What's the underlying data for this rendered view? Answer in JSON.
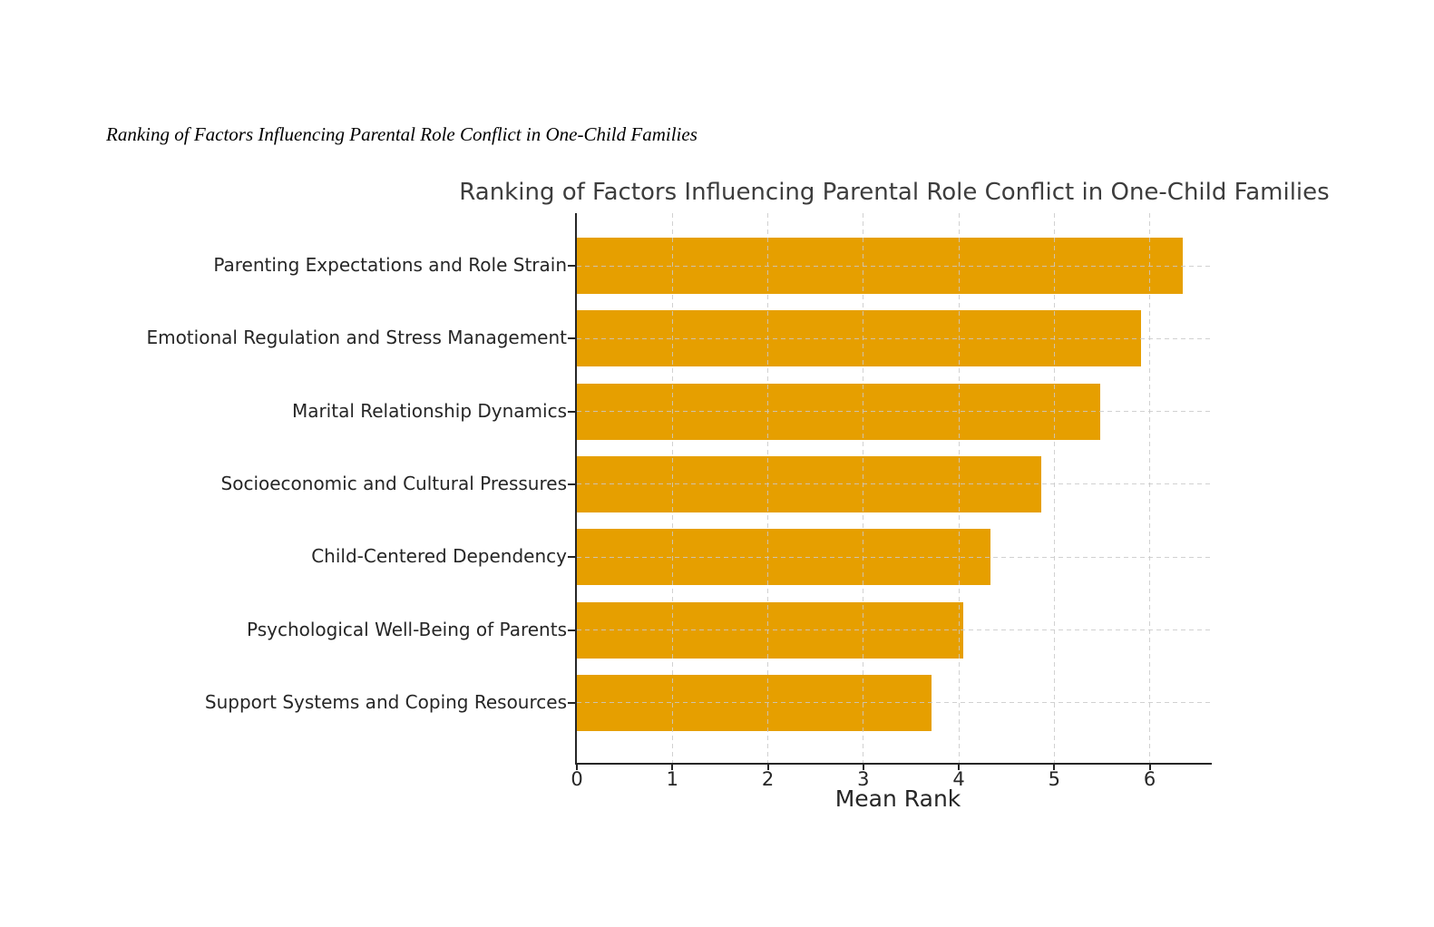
{
  "figure_caption": "Ranking of Factors Influencing Parental Role Conflict in One-Child Families",
  "chart_data": {
    "type": "bar",
    "orientation": "horizontal",
    "title": "Ranking of Factors Influencing Parental Role Conflict in One-Child Families",
    "xlabel": "Mean Rank",
    "ylabel": "",
    "categories": [
      "Parenting Expectations and Role Strain",
      "Emotional Regulation and Stress Management",
      "Marital Relationship Dynamics",
      "Socioeconomic and Cultural Pressures",
      "Child-Centered Dependency",
      "Psychological Well-Being of Parents",
      "Support Systems and Coping Resources"
    ],
    "values": [
      6.35,
      5.91,
      5.48,
      4.86,
      4.33,
      4.05,
      3.71
    ],
    "xticks": [
      0,
      1,
      2,
      3,
      4,
      5,
      6
    ],
    "xlim": [
      0,
      6.65
    ],
    "grid": "dashed, both axes, drawn over bars",
    "legend": "none",
    "bar_color": "#E69F00",
    "axis_color": "#262626",
    "grid_color": "#c9c9c9",
    "title_color": "#3d3d3d",
    "background_color": "#ffffff"
  }
}
